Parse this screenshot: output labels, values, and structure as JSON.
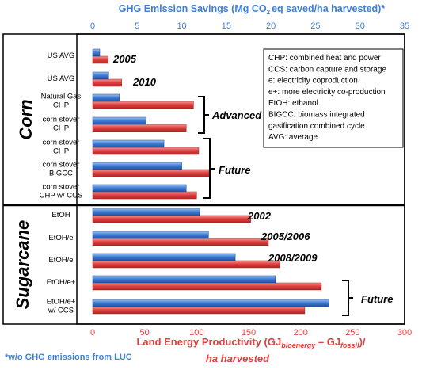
{
  "chart_data": {
    "type": "bar",
    "title_top": {
      "pre": "GHG Emission Savings (Mg CO",
      "sub": "2",
      "post": "eq saved/ha harvested)*"
    },
    "footnote": "*w/o GHG emissions from LUC",
    "x_top": {
      "ticks": [
        "0",
        "5",
        "10",
        "15",
        "20",
        "25",
        "30",
        "35"
      ],
      "range": [
        0,
        35
      ]
    },
    "x_bottom": {
      "ticks": [
        "0",
        "50",
        "100",
        "150",
        "200",
        "250",
        "300"
      ],
      "range": [
        0,
        300
      ],
      "label_line1_pre": "Land Energy Productivity (GJ",
      "label_sub1": "bioenergy",
      "label_mid": " – GJ",
      "label_sub2": "fossil",
      "label_post": ")/",
      "label_line2": "ha harvested"
    },
    "sections": [
      "Corn",
      "Sugarcane"
    ],
    "legend_lines": [
      "CHP: combined heat and power",
      "CCS: carbon capture and storage",
      "e: electricity coproduction",
      "e+: more electricity co-production",
      "EtOH: ethanol",
      "BIGCC: biomass integrated",
      "gasification combined cycle",
      "AVG: average"
    ],
    "group_labels": [
      "2005",
      "2010",
      "Advanced",
      "Future",
      "2002",
      "2005/2006",
      "2008/2009",
      "Future"
    ],
    "categories": [
      [
        "US AVG"
      ],
      [
        "US AVG"
      ],
      [
        "Natural Gas",
        "CHP"
      ],
      [
        "corn stover",
        "CHP"
      ],
      [
        "corn stover",
        "CHP"
      ],
      [
        "corn stover",
        "BIGCC"
      ],
      [
        "corn stover",
        "CHP w/ CCS"
      ],
      [
        "EtOH"
      ],
      [
        "EtOH/e"
      ],
      [
        "EtOH/e"
      ],
      [
        "EtOH/e+"
      ],
      [
        "EtOH/e+",
        "w/ CCS"
      ]
    ],
    "series": [
      {
        "values": [
          15,
          28,
          97,
          90,
          102,
          112,
          100,
          152,
          169,
          180,
          220,
          204
        ],
        "color": "#e0413f",
        "axis": "bottom"
      },
      {
        "values": [
          0.8,
          1.8,
          3.0,
          6.0,
          8.0,
          10.0,
          10.5,
          12.0,
          13.0,
          16.0,
          20.5,
          26.5
        ],
        "color": "#3f7fd8",
        "axis": "top"
      }
    ]
  }
}
